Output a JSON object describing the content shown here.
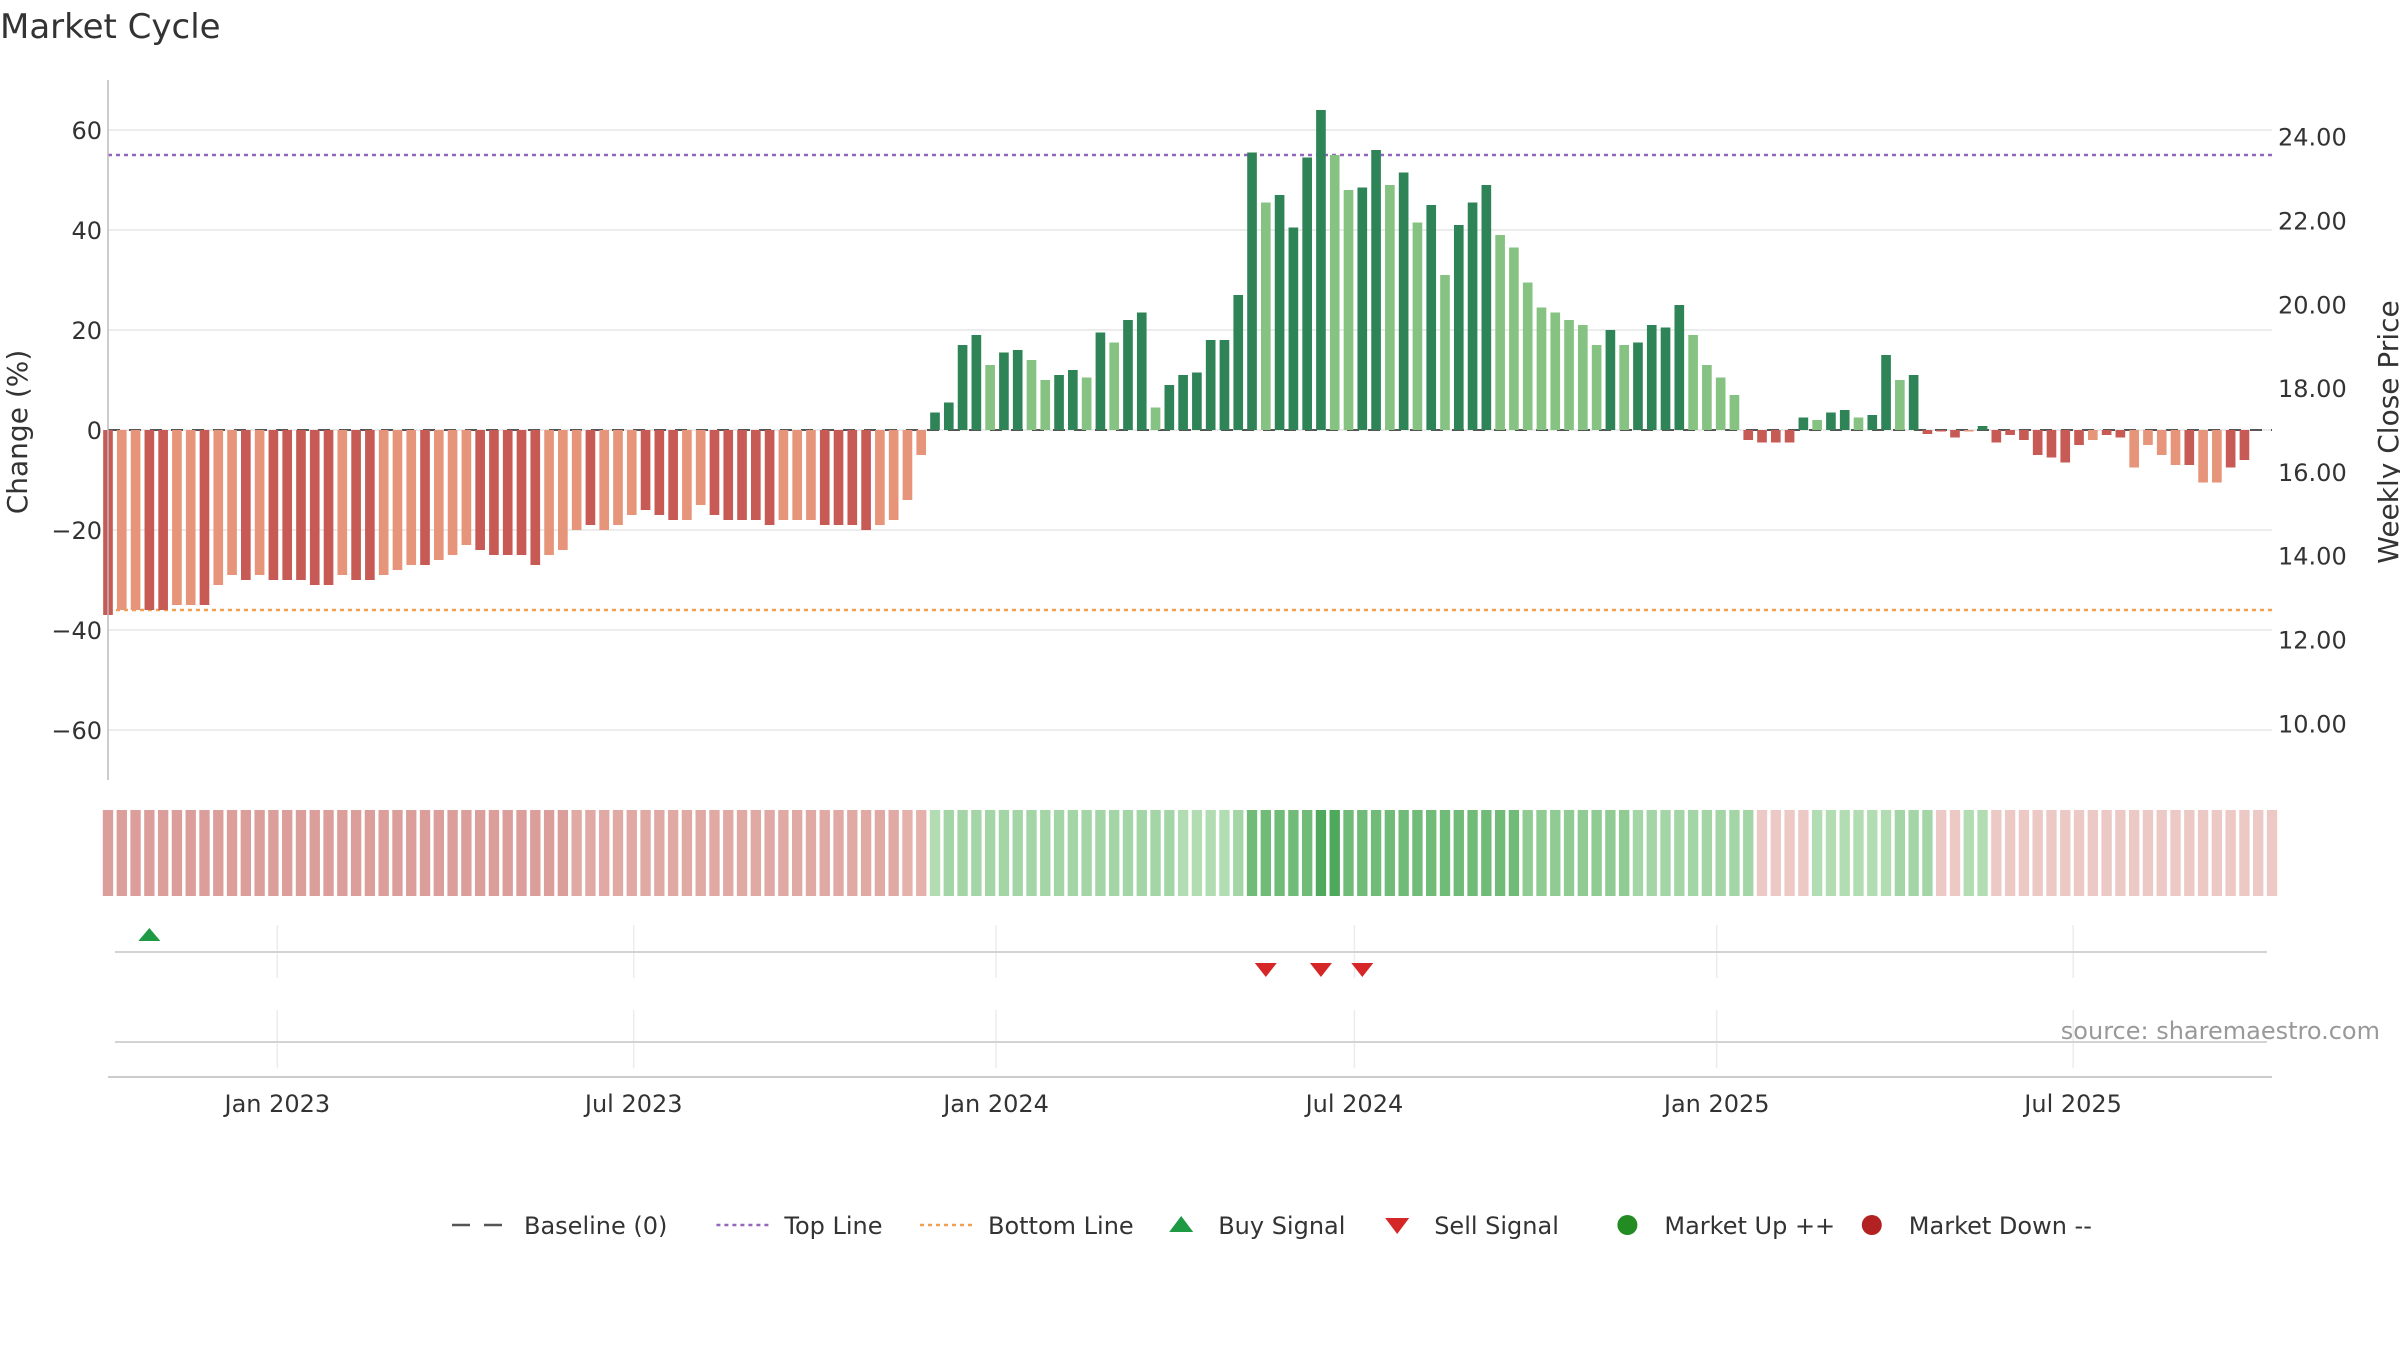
{
  "title": "Market Cycle",
  "source": "source: sharemaestro.com",
  "colors": {
    "pos_dark": "#2e8456",
    "pos_light": "#86c383",
    "neg_dark": "#c85a56",
    "neg_light": "#e6957a",
    "top_line": "#9467bd",
    "bottom_line": "#f0a051",
    "baseline": "#555555",
    "buy": "#1e9a45",
    "sell": "#d62728",
    "up": "#228b22",
    "down": "#b22222"
  },
  "chart_data": {
    "type": "bar",
    "title": "Market Cycle",
    "xlabel": "",
    "ylabel": "Change (%)",
    "y2label": "Weekly Close Price",
    "ylim": [
      -70,
      70
    ],
    "y2lim": [
      8.65,
      25.35
    ],
    "yticks": [
      60,
      40,
      20,
      0,
      -20,
      -40,
      -60
    ],
    "yticklabels": [
      "60",
      "40",
      "20",
      "0",
      "−20",
      "−40",
      "−60"
    ],
    "y2ticks": [
      24,
      22,
      20,
      18,
      16,
      14,
      12,
      10
    ],
    "y2ticklabels": [
      "24.00",
      "22.00",
      "20.00",
      "18.00",
      "16.00",
      "14.00",
      "12.00",
      "10.00"
    ],
    "x_start": "2022-10-07",
    "x_end": "2025-10-10",
    "xticks": [
      "2023-01-01",
      "2023-07-01",
      "2024-01-01",
      "2024-07-01",
      "2025-01-01",
      "2025-07-01"
    ],
    "xticklabels": [
      "Jan 2023",
      "Jul 2023",
      "Jan 2024",
      "Jul 2024",
      "Jan 2025",
      "Jul 2025"
    ],
    "top_line": 55,
    "bottom_line": -36,
    "bar_start": "2022-10-07",
    "bar_step_days": 7,
    "values": [
      -37,
      -36,
      -36,
      -36,
      -36,
      -35,
      -35,
      -35,
      -31,
      -29,
      -30,
      -29,
      -30,
      -30,
      -30,
      -31,
      -31,
      -29,
      -30,
      -30,
      -29,
      -28,
      -27,
      -27,
      -26,
      -25,
      -23,
      -24,
      -25,
      -25,
      -25,
      -27,
      -25,
      -24,
      -20,
      -19,
      -20,
      -19,
      -17,
      -16,
      -17,
      -18,
      -18,
      -15,
      -17,
      -18,
      -18,
      -18,
      -19,
      -18,
      -18,
      -18,
      -19,
      -19,
      -19,
      -20,
      -19,
      -18,
      -14,
      -5,
      3.5,
      5.5,
      17,
      19,
      13,
      15.5,
      16,
      14,
      10,
      11,
      12,
      10.5,
      19.5,
      17.5,
      22,
      23.5,
      4.5,
      9,
      11,
      11.5,
      18,
      18,
      27,
      55.5,
      45.5,
      47,
      40.5,
      54.5,
      64,
      55,
      48,
      48.5,
      56,
      49,
      51.5,
      41.5,
      45,
      31,
      41,
      45.5,
      49,
      39,
      36.5,
      29.5,
      24.5,
      23.5,
      22,
      21,
      17,
      20,
      17,
      17.5,
      21,
      20.5,
      25,
      19,
      13,
      10.5,
      7,
      -2,
      -2.5,
      -2.5,
      -2.5,
      2.5,
      2,
      3.5,
      4,
      2.5,
      3,
      15,
      10,
      11,
      -0.8,
      -0.3,
      -1.5,
      -0.3,
      0.8,
      -2.5,
      -1,
      -2,
      -5,
      -5.5,
      -6.5,
      -3,
      -2,
      -1,
      -1.5,
      -7.5,
      -3,
      -5,
      -7,
      -7,
      -10.5,
      -10.5,
      -7.5,
      -6
    ],
    "bar_shade": [
      "d",
      "l",
      "l",
      "d",
      "d",
      "l",
      "l",
      "d",
      "l",
      "l",
      "d",
      "l",
      "d",
      "d",
      "d",
      "d",
      "d",
      "l",
      "d",
      "d",
      "l",
      "l",
      "l",
      "d",
      "l",
      "l",
      "l",
      "d",
      "d",
      "d",
      "d",
      "d",
      "l",
      "l",
      "l",
      "d",
      "l",
      "l",
      "l",
      "d",
      "d",
      "d",
      "l",
      "l",
      "d",
      "d",
      "d",
      "d",
      "d",
      "l",
      "l",
      "l",
      "d",
      "d",
      "d",
      "d",
      "l",
      "l",
      "l",
      "l",
      "d",
      "d",
      "d",
      "d",
      "l",
      "d",
      "d",
      "l",
      "l",
      "d",
      "d",
      "l",
      "d",
      "l",
      "d",
      "d",
      "l",
      "d",
      "d",
      "d",
      "d",
      "d",
      "d",
      "d",
      "l",
      "d",
      "d",
      "d",
      "d",
      "l",
      "l",
      "d",
      "d",
      "l",
      "d",
      "l",
      "d",
      "l",
      "d",
      "d",
      "d",
      "l",
      "l",
      "l",
      "l",
      "l",
      "l",
      "l",
      "l",
      "d",
      "l",
      "d",
      "d",
      "d",
      "d",
      "l",
      "l",
      "l",
      "l",
      "d",
      "d",
      "d",
      "d",
      "d",
      "l",
      "d",
      "d",
      "l",
      "d",
      "d",
      "l",
      "d",
      "d",
      "d",
      "d",
      "l",
      "d",
      "d",
      "d",
      "d",
      "d",
      "d",
      "d",
      "d",
      "l",
      "d",
      "d",
      "l",
      "l",
      "l",
      "l",
      "d",
      "l",
      "l",
      "d",
      "d",
      "d",
      "d",
      "l",
      "l"
    ],
    "heat_start": "2022-10-07",
    "heat_step_days": 7,
    "heat_levels": [
      -6,
      -6,
      -6,
      -6,
      -6,
      -6,
      -6,
      -6,
      -6,
      -6,
      -6,
      -6,
      -6,
      -6,
      -6,
      -6,
      -6,
      -6,
      -6,
      -6,
      -6,
      -6,
      -6,
      -6,
      -6,
      -6,
      -6,
      -6,
      -6,
      -6,
      -6,
      -6,
      -6,
      -6,
      -5,
      -5,
      -5,
      -5,
      -5,
      -5,
      -5,
      -5,
      -5,
      -5,
      -5,
      -5,
      -5,
      -5,
      -5,
      -5,
      -5,
      -5,
      -5,
      -5,
      -5,
      -5,
      -5,
      -5,
      -4,
      -4,
      2,
      3,
      3,
      3,
      3,
      3,
      3,
      3,
      3,
      3,
      3,
      3,
      3,
      3,
      3,
      3,
      3,
      3,
      2,
      2,
      2,
      2,
      3,
      5,
      5,
      5,
      5,
      5,
      6,
      6,
      5,
      5,
      5,
      5,
      5,
      5,
      5,
      5,
      5,
      5,
      5,
      5,
      5,
      4,
      4,
      4,
      4,
      4,
      4,
      4,
      4,
      3,
      3,
      3,
      3,
      3,
      3,
      3,
      3,
      3,
      -2,
      -2,
      -2,
      -2,
      2,
      2,
      2,
      2,
      2,
      2,
      3,
      3,
      3,
      -2,
      -2,
      2,
      2,
      -2,
      -2,
      -2,
      -2,
      -2,
      -2,
      -2,
      -2,
      -2,
      -2,
      -2,
      -2,
      -2,
      -2,
      -2,
      -2,
      -2,
      -2,
      -2,
      -2,
      -2
    ],
    "buy_signals": [
      {
        "date": "2022-10-28"
      }
    ],
    "sell_signals": [
      {
        "date": "2024-05-17"
      },
      {
        "date": "2024-06-14"
      },
      {
        "date": "2024-07-05"
      }
    ],
    "legend": [
      {
        "label": "Baseline (0)",
        "symbol": "dash",
        "color": "#555555"
      },
      {
        "label": "Top Line",
        "symbol": "dot-line",
        "color": "#9467bd"
      },
      {
        "label": "Bottom Line",
        "symbol": "dot-line",
        "color": "#f0a051"
      },
      {
        "label": "Buy Signal",
        "symbol": "triangle-up",
        "color": "#1e9a45"
      },
      {
        "label": "Sell Signal",
        "symbol": "triangle-down",
        "color": "#d62728"
      },
      {
        "label": "Market Up ++",
        "symbol": "circle",
        "color": "#228b22"
      },
      {
        "label": "Market Down --",
        "symbol": "circle",
        "color": "#b22222"
      }
    ]
  }
}
